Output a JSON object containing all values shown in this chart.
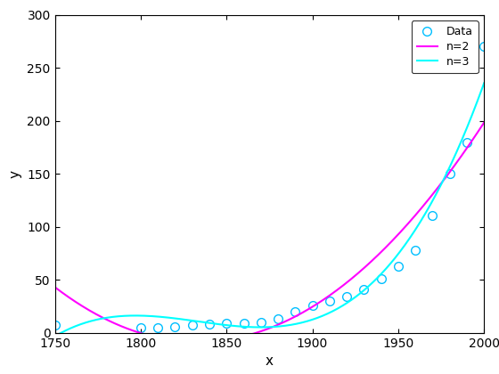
{
  "x_data": [
    1750,
    1800,
    1810,
    1820,
    1830,
    1840,
    1850,
    1860,
    1870,
    1880,
    1890,
    1900,
    1910,
    1920,
    1930,
    1940,
    1950,
    1960,
    1970,
    1980,
    1990,
    2000
  ],
  "y_data": [
    7,
    5,
    5,
    6,
    7,
    8,
    9,
    9,
    10,
    13,
    20,
    26,
    30,
    34,
    41,
    51,
    63,
    78,
    111,
    150,
    180,
    270
  ],
  "xlim": [
    1750,
    2000
  ],
  "ylim": [
    0,
    300
  ],
  "xlabel": "x",
  "ylabel": "y",
  "xticks": [
    1750,
    1800,
    1850,
    1900,
    1950,
    2000
  ],
  "yticks": [
    0,
    50,
    100,
    150,
    200,
    250,
    300
  ],
  "data_color": "#00BFFF",
  "data_marker": "o",
  "n2_color": "#FF00FF",
  "n3_color": "#00FFFF",
  "line_width": 1.5,
  "legend_labels": [
    "Data",
    "n=2",
    "n=3"
  ],
  "background_color": "#ffffff",
  "fig_width": 5.6,
  "fig_height": 4.2,
  "dpi": 100
}
